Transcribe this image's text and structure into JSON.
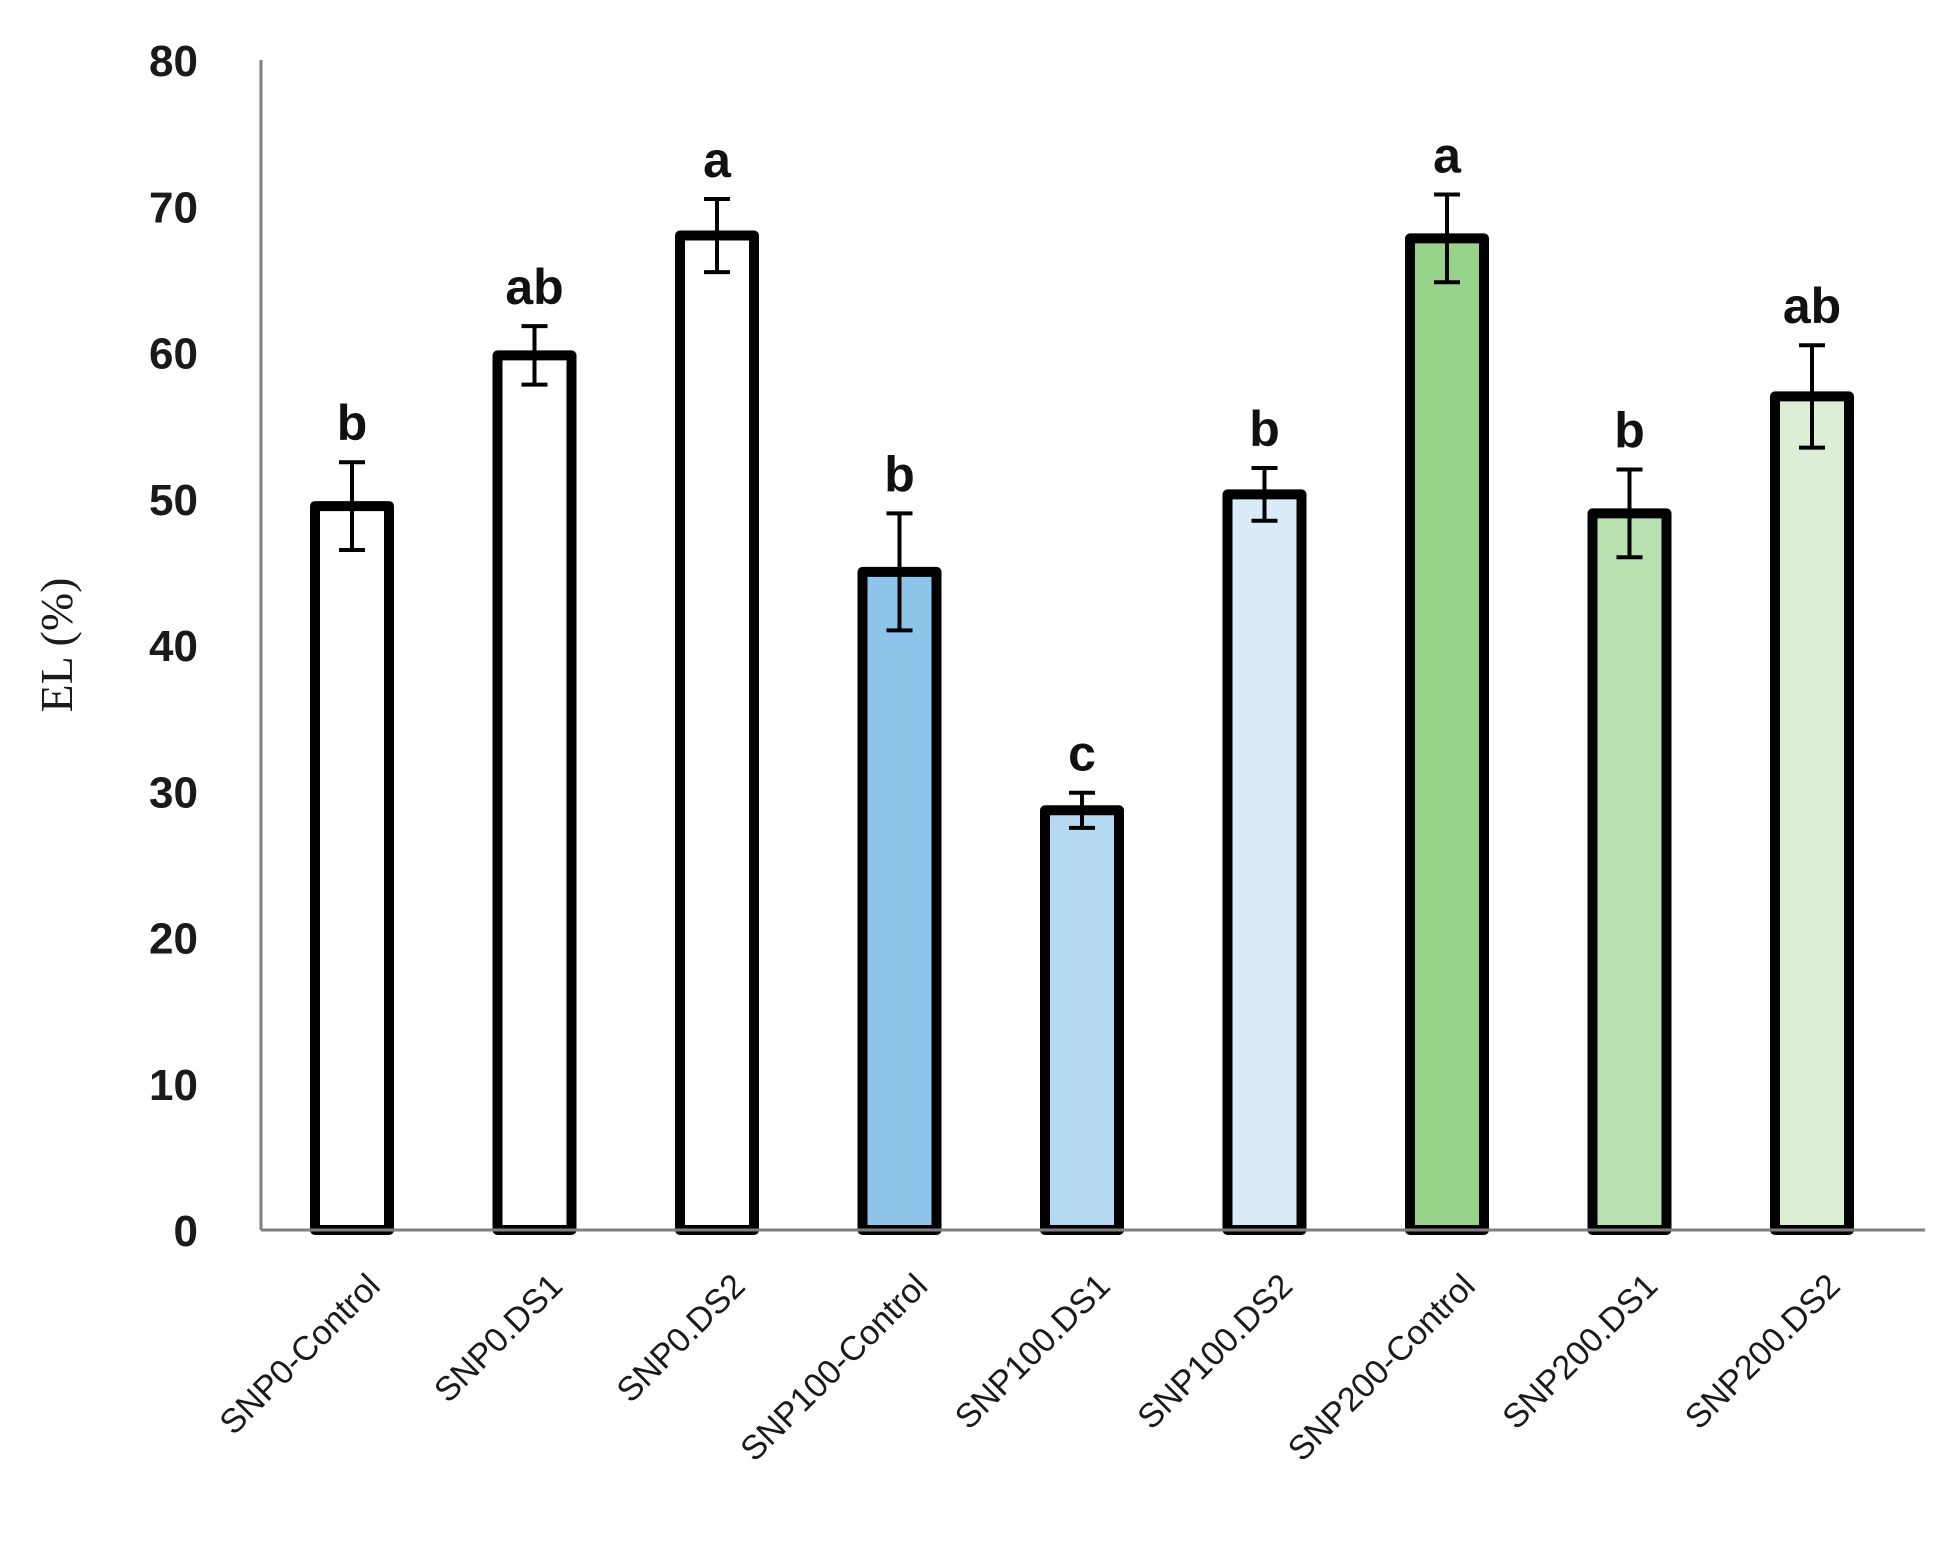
{
  "chart_data": {
    "type": "bar",
    "title": "",
    "xlabel": "",
    "ylabel": "EL (%)",
    "ylim": [
      0,
      80
    ],
    "yticks": [
      0,
      10,
      20,
      30,
      40,
      50,
      60,
      70,
      80
    ],
    "grid": false,
    "legend": "none",
    "categories": [
      "SNP0-Control",
      "SNP0.DS1",
      "SNP0.DS2",
      "SNP100-Control",
      "SNP100.DS1",
      "SNP100.DS2",
      "SNP200-Control",
      "SNP200.DS1",
      "SNP200.DS2"
    ],
    "values": [
      49.5,
      59.8,
      68,
      45,
      28.7,
      50.3,
      67.8,
      49,
      57
    ],
    "error": [
      3,
      2,
      2.5,
      4,
      1.2,
      1.8,
      3,
      3,
      3.5
    ],
    "significance": [
      "b",
      "ab",
      "a",
      "b",
      "c",
      "b",
      "a",
      "b",
      "ab"
    ],
    "colors": [
      "#ffffff",
      "#ffffff",
      "#ffffff",
      "#8cc4ea",
      "#b6d9f2",
      "#dbeaf7",
      "#98d38c",
      "#b8e0b0",
      "#dcefd6"
    ],
    "axis_color": "#7f7f7f",
    "bar_edge_color": "#000000"
  }
}
